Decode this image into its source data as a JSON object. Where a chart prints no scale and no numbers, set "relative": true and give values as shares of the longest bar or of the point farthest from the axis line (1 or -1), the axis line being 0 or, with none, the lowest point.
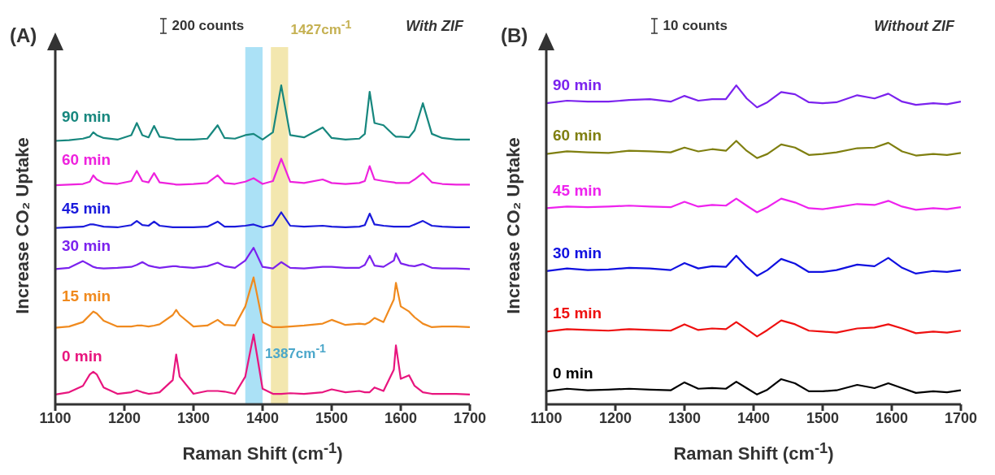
{
  "chart_data": [
    {
      "type": "line",
      "title": "(A)",
      "xlabel": "Raman Shift (cm$^{-1}$)",
      "ylabel": "Increase CO₂ Uptake",
      "relative": true,
      "xlim": [
        1100,
        1700
      ],
      "xticks": [
        1100,
        1200,
        1300,
        1400,
        1500,
        1600,
        1700
      ],
      "marker": "none",
      "annotations": [
        "200 counts",
        "With ZIF"
      ],
      "bands": [
        {
          "axis": "x",
          "from": 1375,
          "to": 1400,
          "label": "1387cm$^{-1}$",
          "color": "#58c4ee"
        },
        {
          "axis": "x",
          "from": 1412,
          "to": 1437,
          "label": "1427cm$^{-1}$",
          "color": "#e8d060"
        }
      ],
      "x": [
        1100,
        1120,
        1140,
        1150,
        1155,
        1160,
        1170,
        1190,
        1210,
        1218,
        1226,
        1235,
        1243,
        1251,
        1270,
        1275,
        1280,
        1300,
        1320,
        1335,
        1345,
        1360,
        1375,
        1387,
        1400,
        1415,
        1427,
        1440,
        1460,
        1487,
        1500,
        1520,
        1540,
        1548,
        1555,
        1562,
        1575,
        1590,
        1593,
        1600,
        1612,
        1620,
        1632,
        1645,
        1660,
        1680,
        1700
      ],
      "series": [
        {
          "name": "90 min",
          "color": "#17877e",
          "values": [
            0.826,
            0.828,
            0.833,
            0.839,
            0.853,
            0.844,
            0.835,
            0.83,
            0.844,
            0.882,
            0.844,
            0.837,
            0.873,
            0.839,
            0.833,
            0.83,
            0.83,
            0.83,
            0.833,
            0.875,
            0.835,
            0.833,
            0.844,
            0.848,
            0.83,
            0.853,
            1.0,
            0.844,
            0.837,
            0.868,
            0.835,
            0.83,
            0.833,
            0.848,
            0.98,
            0.882,
            0.875,
            0.844,
            0.839,
            0.839,
            0.837,
            0.859,
            0.944,
            0.848,
            0.835,
            0.83,
            0.83
          ]
        },
        {
          "name": "60 min",
          "color": "#ee22dd",
          "values": [
            0.687,
            0.689,
            0.691,
            0.698,
            0.718,
            0.705,
            0.694,
            0.691,
            0.7,
            0.732,
            0.7,
            0.696,
            0.725,
            0.696,
            0.691,
            0.689,
            0.689,
            0.691,
            0.694,
            0.718,
            0.694,
            0.691,
            0.698,
            0.709,
            0.691,
            0.7,
            0.77,
            0.698,
            0.694,
            0.705,
            0.694,
            0.691,
            0.694,
            0.7,
            0.747,
            0.705,
            0.7,
            0.696,
            0.694,
            0.694,
            0.694,
            0.705,
            0.725,
            0.696,
            0.691,
            0.689,
            0.689
          ]
        },
        {
          "name": "45 min",
          "color": "#1a1adc",
          "values": [
            0.553,
            0.555,
            0.557,
            0.564,
            0.564,
            0.562,
            0.557,
            0.555,
            0.562,
            0.575,
            0.562,
            0.56,
            0.573,
            0.56,
            0.555,
            0.555,
            0.555,
            0.555,
            0.557,
            0.573,
            0.557,
            0.557,
            0.56,
            0.564,
            0.555,
            0.562,
            0.602,
            0.56,
            0.557,
            0.56,
            0.557,
            0.555,
            0.557,
            0.562,
            0.598,
            0.564,
            0.56,
            0.557,
            0.557,
            0.557,
            0.557,
            0.564,
            0.575,
            0.56,
            0.557,
            0.555,
            0.555
          ]
        },
        {
          "name": "30 min",
          "color": "#7b22ee",
          "values": [
            0.424,
            0.428,
            0.449,
            0.437,
            0.431,
            0.428,
            0.426,
            0.428,
            0.431,
            0.437,
            0.446,
            0.435,
            0.431,
            0.428,
            0.433,
            0.433,
            0.431,
            0.428,
            0.433,
            0.444,
            0.433,
            0.428,
            0.451,
            0.491,
            0.431,
            0.426,
            0.446,
            0.428,
            0.426,
            0.431,
            0.431,
            0.428,
            0.428,
            0.437,
            0.466,
            0.435,
            0.431,
            0.451,
            0.473,
            0.442,
            0.435,
            0.433,
            0.44,
            0.428,
            0.426,
            0.426,
            0.424
          ]
        },
        {
          "name": "15 min",
          "color": "#f08a1e",
          "values": [
            0.24,
            0.244,
            0.258,
            0.28,
            0.291,
            0.285,
            0.262,
            0.244,
            0.244,
            0.247,
            0.247,
            0.244,
            0.247,
            0.251,
            0.28,
            0.296,
            0.28,
            0.244,
            0.247,
            0.265,
            0.249,
            0.247,
            0.307,
            0.398,
            0.258,
            0.242,
            0.242,
            0.244,
            0.247,
            0.253,
            0.265,
            0.249,
            0.253,
            0.251,
            0.258,
            0.271,
            0.258,
            0.329,
            0.381,
            0.307,
            0.291,
            0.273,
            0.253,
            0.242,
            0.244,
            0.244,
            0.242
          ]
        },
        {
          "name": "0 min",
          "color": "#e8157e",
          "values": [
            0.031,
            0.038,
            0.058,
            0.094,
            0.102,
            0.094,
            0.053,
            0.033,
            0.038,
            0.044,
            0.038,
            0.033,
            0.035,
            0.038,
            0.076,
            0.156,
            0.087,
            0.033,
            0.042,
            0.042,
            0.04,
            0.033,
            0.087,
            0.219,
            0.049,
            0.033,
            0.033,
            0.035,
            0.033,
            0.038,
            0.047,
            0.038,
            0.042,
            0.038,
            0.038,
            0.053,
            0.042,
            0.109,
            0.185,
            0.08,
            0.091,
            0.058,
            0.038,
            0.033,
            0.033,
            0.033,
            0.031
          ]
        }
      ]
    },
    {
      "type": "line",
      "title": "(B)",
      "xlabel": "Raman Shift (cm$^{-1}$)",
      "ylabel": "Increase CO₂ Uptake",
      "relative": true,
      "xlim": [
        1100,
        1700
      ],
      "xticks": [
        1100,
        1200,
        1300,
        1400,
        1500,
        1600,
        1700
      ],
      "marker": "none",
      "annotations": [
        "10 counts",
        "Without ZIF"
      ],
      "x": [
        1100,
        1130,
        1160,
        1190,
        1220,
        1250,
        1280,
        1300,
        1320,
        1340,
        1360,
        1375,
        1390,
        1405,
        1420,
        1440,
        1460,
        1480,
        1500,
        1520,
        1550,
        1575,
        1595,
        1615,
        1635,
        1660,
        1680,
        1700
      ],
      "series": [
        {
          "name": "90 min",
          "color": "#7b22ee",
          "values": [
            0.944,
            0.952,
            0.949,
            0.949,
            0.954,
            0.957,
            0.949,
            0.967,
            0.952,
            0.957,
            0.957,
            1.0,
            0.959,
            0.931,
            0.947,
            0.979,
            0.972,
            0.947,
            0.944,
            0.947,
            0.969,
            0.959,
            0.974,
            0.949,
            0.939,
            0.944,
            0.941,
            0.949
          ]
        },
        {
          "name": "60 min",
          "color": "#7f7f10",
          "values": [
            0.785,
            0.793,
            0.79,
            0.788,
            0.795,
            0.793,
            0.79,
            0.805,
            0.793,
            0.8,
            0.795,
            0.826,
            0.795,
            0.772,
            0.785,
            0.815,
            0.805,
            0.782,
            0.785,
            0.79,
            0.803,
            0.805,
            0.82,
            0.793,
            0.78,
            0.785,
            0.782,
            0.788
          ]
        },
        {
          "name": "45 min",
          "color": "#ee22ee",
          "values": [
            0.615,
            0.62,
            0.618,
            0.62,
            0.623,
            0.62,
            0.618,
            0.635,
            0.62,
            0.625,
            0.623,
            0.645,
            0.623,
            0.602,
            0.618,
            0.645,
            0.633,
            0.615,
            0.612,
            0.618,
            0.628,
            0.625,
            0.638,
            0.62,
            0.61,
            0.615,
            0.612,
            0.618
          ]
        },
        {
          "name": "30 min",
          "color": "#1010e0",
          "values": [
            0.418,
            0.426,
            0.421,
            0.423,
            0.428,
            0.426,
            0.421,
            0.443,
            0.426,
            0.433,
            0.431,
            0.466,
            0.431,
            0.403,
            0.421,
            0.456,
            0.441,
            0.415,
            0.415,
            0.421,
            0.438,
            0.433,
            0.459,
            0.428,
            0.41,
            0.418,
            0.415,
            0.421
          ]
        },
        {
          "name": "15 min",
          "color": "#ee1010",
          "values": [
            0.228,
            0.236,
            0.233,
            0.231,
            0.236,
            0.233,
            0.231,
            0.251,
            0.233,
            0.238,
            0.236,
            0.258,
            0.236,
            0.213,
            0.233,
            0.263,
            0.251,
            0.231,
            0.228,
            0.225,
            0.238,
            0.241,
            0.251,
            0.238,
            0.223,
            0.228,
            0.225,
            0.231
          ]
        },
        {
          "name": "0 min",
          "color": "#000000",
          "values": [
            0.041,
            0.049,
            0.044,
            0.046,
            0.049,
            0.046,
            0.044,
            0.069,
            0.049,
            0.051,
            0.049,
            0.071,
            0.051,
            0.031,
            0.046,
            0.079,
            0.066,
            0.041,
            0.041,
            0.044,
            0.061,
            0.051,
            0.066,
            0.051,
            0.036,
            0.041,
            0.038,
            0.044
          ]
        }
      ]
    }
  ]
}
